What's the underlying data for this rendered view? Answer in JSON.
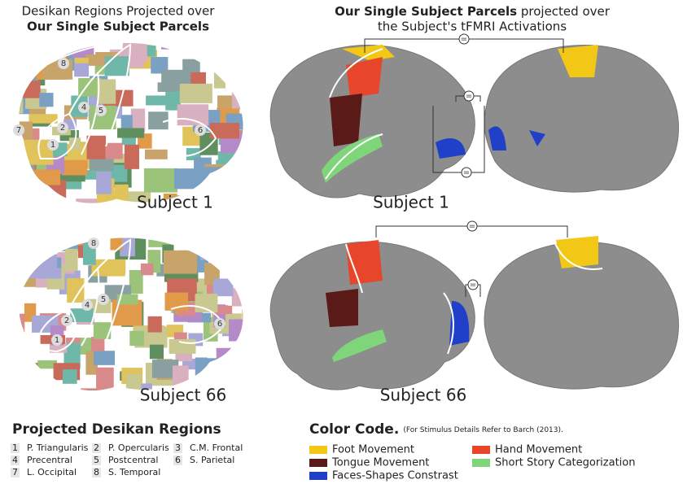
{
  "left_title": {
    "line1": "Desikan Regions Projected over",
    "line2": "Our Single Subject Parcels"
  },
  "right_title": {
    "bold": "Our Single Subject Parcels",
    "rest": "projected over",
    "line2": "the Subject's tFMRI Activations"
  },
  "subjects": [
    "Subject 1",
    "Subject 66"
  ],
  "equals": "=",
  "regions": {
    "title": "Projected Desikan Regions",
    "items": [
      {
        "num": "1",
        "name": "P. Triangularis"
      },
      {
        "num": "2",
        "name": "P. Opercularis"
      },
      {
        "num": "3",
        "name": "C.M. Frontal"
      },
      {
        "num": "4",
        "name": "Precentral"
      },
      {
        "num": "5",
        "name": "Postcentral"
      },
      {
        "num": "6",
        "name": "S. Parietal"
      },
      {
        "num": "7",
        "name": "L. Occipital"
      },
      {
        "num": "8",
        "name": "S. Temporal"
      }
    ]
  },
  "color_code": {
    "title": "Color Code.",
    "note": "(For Stimulus Details Refer to Barch (2013).",
    "items": [
      {
        "name": "Foot Movement",
        "color": "#f2c716"
      },
      {
        "name": "Hand Movement",
        "color": "#e8462a"
      },
      {
        "name": "Tongue Movement",
        "color": "#5a1a18"
      },
      {
        "name": "Short Story Categorization",
        "color": "#7fd67a"
      },
      {
        "name": "Faces-Shapes Constrast",
        "color": "#2140c8"
      }
    ]
  }
}
